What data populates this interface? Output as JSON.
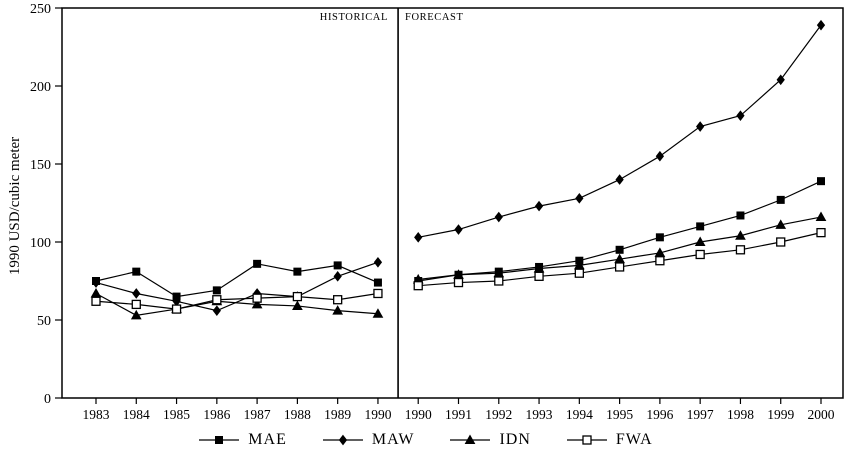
{
  "colors": {
    "line": "#000000",
    "background": "#ffffff"
  },
  "chart_data": {
    "type": "line",
    "title": "",
    "xlabel": "",
    "ylabel": "1990 USD/cubic meter",
    "ylim": [
      0,
      250
    ],
    "yticks": [
      0,
      50,
      100,
      150,
      200,
      250
    ],
    "grid": false,
    "legend_position": "bottom",
    "categories": [
      "1983",
      "1984",
      "1985",
      "1986",
      "1987",
      "1988",
      "1989",
      "1990",
      "1990",
      "1991",
      "1992",
      "1993",
      "1994",
      "1995",
      "1996",
      "1997",
      "1998",
      "1999",
      "2000"
    ],
    "divider_after_index": 7,
    "annotations": {
      "historical": "HISTORICAL",
      "forecast": "FORECAST"
    },
    "series": [
      {
        "name": "MAE",
        "marker": "filled-square",
        "values": [
          75,
          81,
          65,
          69,
          86,
          81,
          85,
          74,
          75,
          79,
          81,
          84,
          88,
          95,
          103,
          110,
          117,
          127,
          139
        ]
      },
      {
        "name": "MAW",
        "marker": "filled-diamond",
        "values": [
          74,
          67,
          62,
          56,
          67,
          65,
          78,
          87,
          103,
          108,
          116,
          123,
          128,
          140,
          155,
          174,
          181,
          204,
          239
        ]
      },
      {
        "name": "IDN",
        "marker": "filled-triangle",
        "values": [
          67,
          53,
          57,
          62,
          60,
          59,
          56,
          54,
          76,
          79,
          80,
          83,
          85,
          89,
          93,
          100,
          104,
          111,
          116
        ]
      },
      {
        "name": "FWA",
        "marker": "open-square",
        "values": [
          62,
          60,
          57,
          63,
          64,
          65,
          63,
          67,
          72,
          74,
          75,
          78,
          80,
          84,
          88,
          92,
          95,
          100,
          106
        ]
      }
    ]
  },
  "legend": {
    "items": [
      {
        "label": "MAE",
        "marker": "filled-square"
      },
      {
        "label": "MAW",
        "marker": "filled-diamond"
      },
      {
        "label": "IDN",
        "marker": "filled-triangle"
      },
      {
        "label": "FWA",
        "marker": "open-square"
      }
    ]
  }
}
